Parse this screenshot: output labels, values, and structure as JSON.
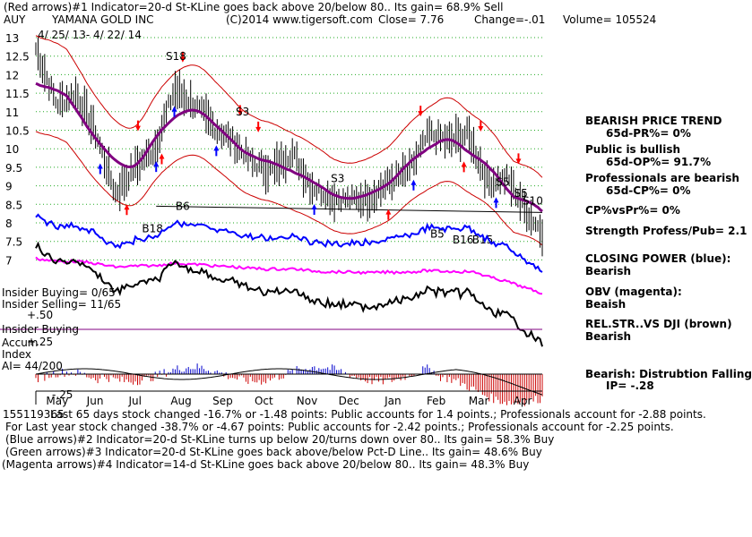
{
  "header": {
    "line1": "(Red arrows)#1 Indicator=20-d St-KLine goes back above 20/below 80.. Its gain= 68.9% Sell",
    "ticker": "AUY",
    "company": "YAMANA GOLD INC",
    "copyright": "(C)2014 www.tigersoft.com",
    "close": "Close=  7.76",
    "change": "Change=-.01",
    "volume": "Volume= 105524",
    "date_range": "4/ 25/ 13-  4/ 22/ 14"
  },
  "left_labels": {
    "insider_buying_count": "Insider Buying= 0/65",
    "insider_selling_count": "Insider Selling= 11/65",
    "plus50": "+.50",
    "insider_buying": "Insider Buying",
    "accum": "Accum",
    "plus25": "+.25",
    "index": "Index",
    "ai": "AI= 44/200",
    "minus25": "-.25"
  },
  "right_panel": {
    "bearish_trend": "BEARISH PRICE TREND",
    "pr": "65d-PR%= 0%",
    "public_bullish": "Public is bullish",
    "op": "65d-OP%= 91.7%",
    "professionals": "Professionals are bearish",
    "cp": "65d-CP%= 0%",
    "cpvspr": "CP%vsPr%=  0%",
    "strength": "Strength Profess/Pub= 2.1",
    "closing_power": "CLOSING POWER (blue):",
    "closing_power_val": "Bearish",
    "obv": "OBV (magenta):",
    "obv_val": "Beaish",
    "relstr": "REL.STR..VS DJI (brown)",
    "relstr_val": "Bearish",
    "distribution": "Bearish:  Distrubtion Falling",
    "ip": "IP= -.28"
  },
  "bottom_lines": [
    "Last 65 days stock changed -16.7% or -1.48 points:  Public accounts for  1.4 points.;  Professionals account for -2.88 points.",
    "For Last year stock changed -38.7% or -4.67 points:  Public accounts for -2.42 points.;  Professionals account for -2.25 points.",
    "(Blue arrows)#2 Indicator=20-d St-KLine turns up below 20/turns down over 80.. Its gain= 58.3% Buy",
    "(Green arrows)#3 Indicator=20-d St-KLine goes back above/below Pct-D Line.. Its gain= 48.6% Buy",
    "(Magenta arrows)#4 Indicator=14-d St-KLine goes back above 20/below 80.. Its gain= 48.3% Buy"
  ],
  "overlap_text": "155119365",
  "signals": [
    {
      "label": "S18",
      "x": "2013-08-01",
      "price": 12.4
    },
    {
      "label": "S3",
      "x": "2013-09-20",
      "price": 10.9
    },
    {
      "label": "S3",
      "x": "2013-11-27",
      "price": 9.1
    },
    {
      "label": "S5",
      "x": "2014-03-25",
      "price": 9.0
    },
    {
      "label": "S5",
      "x": "2014-04-07",
      "price": 8.7
    },
    {
      "label": "S10",
      "x": "2014-04-13",
      "price": 8.5
    },
    {
      "label": "B18",
      "x": "2013-07-15",
      "price": 7.75
    },
    {
      "label": "B6",
      "x": "2013-08-08",
      "price": 8.35
    },
    {
      "label": "B5",
      "x": "2014-02-06",
      "price": 7.6
    },
    {
      "label": "B16",
      "x": "2014-02-22",
      "price": 7.45
    },
    {
      "label": "B15",
      "x": "2014-03-08",
      "price": 7.45
    }
  ],
  "colors": {
    "red_arrow": "#ff0000",
    "blue_arrow": "#0000ff",
    "closing_power": "#0000ff",
    "obv": "#ff00ff",
    "trend_ma": "#800080",
    "band": "#cc0000",
    "accum_pos": "#0000cc",
    "accum_neg": "#cc0000"
  },
  "chart_data": {
    "type": "line",
    "title": "YAMANA GOLD INC",
    "x_tick_labels": [
      "May",
      "Jun",
      "Jul",
      "Aug",
      "Sep",
      "Oct",
      "Nov",
      "Dec",
      "Jan",
      "Feb",
      "Mar",
      "Apr"
    ],
    "y_tick_labels": [
      "13",
      "12.5",
      "12",
      "11.5",
      "11",
      "10.5",
      "10",
      "9.5",
      "9",
      "8.5",
      "8",
      "7.5",
      "7"
    ],
    "ylim": [
      6.8,
      13.2
    ],
    "grid": true,
    "series": [
      {
        "x": [
          "2013-04-25",
          "2013-05-10",
          "2013-05-24",
          "2013-06-07",
          "2013-06-21",
          "2013-07-05",
          "2013-07-19",
          "2013-08-02",
          "2013-08-16",
          "2013-08-30",
          "2013-09-13",
          "2013-09-27",
          "2013-10-11",
          "2013-10-25",
          "2013-11-08",
          "2013-11-22",
          "2013-12-06",
          "2013-12-20",
          "2014-01-03",
          "2014-01-17",
          "2014-01-31",
          "2014-02-14",
          "2014-02-28",
          "2014-03-14",
          "2014-03-28",
          "2014-04-11",
          "2014-04-22"
        ],
        "values": [
          12.7,
          11.2,
          11.5,
          10.4,
          8.8,
          9.5,
          10.0,
          11.6,
          11.2,
          10.6,
          10.2,
          9.6,
          9.4,
          9.9,
          9.0,
          8.7,
          8.6,
          8.7,
          9.1,
          9.4,
          10.4,
          10.2,
          10.4,
          9.1,
          9.2,
          8.3,
          7.76
        ]
      }
    ]
  }
}
